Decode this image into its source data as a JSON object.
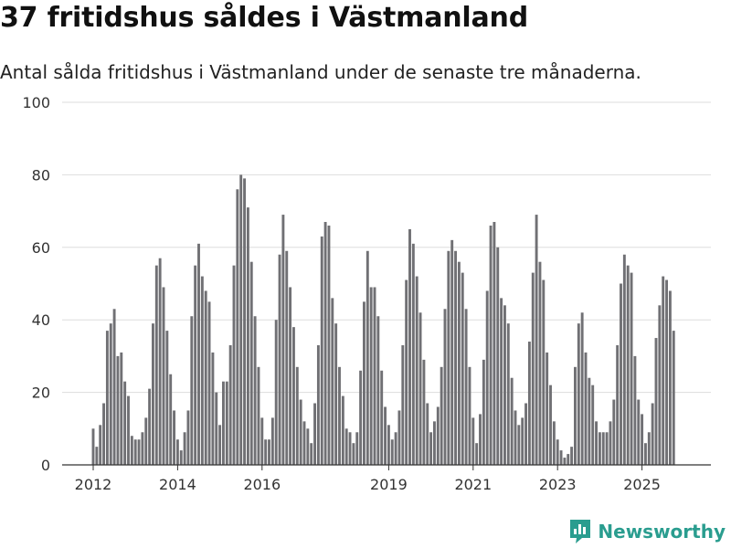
{
  "colors": {
    "bar": "#707074",
    "highlight": "#2a9d8f",
    "grid": "#dddddd",
    "axis": "#333333"
  },
  "brand": {
    "name": "Newsworthy"
  },
  "chart_data": {
    "type": "bar",
    "title": "37 fritidshus såldes i Västmanland",
    "subtitle": "Antal sålda fritidshus i Västmanland under de senaste tre månaderna.",
    "xlabel": "",
    "ylabel": "",
    "ylim": [
      0,
      100
    ],
    "yticks": [
      0,
      20,
      40,
      60,
      80,
      100
    ],
    "xticks": [
      {
        "label": "2012",
        "index": 0
      },
      {
        "label": "2014",
        "index": 24
      },
      {
        "label": "2016",
        "index": 48
      },
      {
        "label": "2019",
        "index": 84
      },
      {
        "label": "2021",
        "index": 108
      },
      {
        "label": "2023",
        "index": 132
      },
      {
        "label": "2025",
        "index": 156
      }
    ],
    "highlight": {
      "index": 167,
      "label": "37"
    },
    "values": [
      10,
      5,
      11,
      17,
      37,
      39,
      43,
      30,
      31,
      23,
      19,
      8,
      7,
      7,
      9,
      13,
      21,
      39,
      55,
      57,
      49,
      37,
      25,
      15,
      7,
      4,
      9,
      15,
      41,
      55,
      61,
      52,
      48,
      45,
      31,
      20,
      11,
      23,
      23,
      33,
      55,
      76,
      80,
      79,
      71,
      56,
      41,
      27,
      13,
      7,
      7,
      13,
      40,
      58,
      69,
      59,
      49,
      38,
      27,
      18,
      12,
      10,
      6,
      17,
      33,
      63,
      67,
      66,
      46,
      39,
      27,
      19,
      10,
      9,
      6,
      9,
      26,
      45,
      59,
      49,
      49,
      41,
      26,
      16,
      11,
      7,
      9,
      15,
      33,
      51,
      65,
      61,
      52,
      42,
      29,
      17,
      9,
      12,
      16,
      27,
      43,
      59,
      62,
      59,
      56,
      53,
      43,
      27,
      13,
      6,
      14,
      29,
      48,
      66,
      67,
      60,
      46,
      44,
      39,
      24,
      15,
      11,
      13,
      17,
      34,
      53,
      69,
      56,
      51,
      31,
      22,
      12,
      7,
      4,
      2,
      3,
      5,
      27,
      39,
      42,
      31,
      24,
      22,
      12,
      9,
      9,
      9,
      12,
      18,
      33,
      50,
      58,
      55,
      53,
      30,
      18,
      14,
      6,
      9,
      17,
      35,
      44,
      52,
      51,
      48,
      37
    ]
  }
}
